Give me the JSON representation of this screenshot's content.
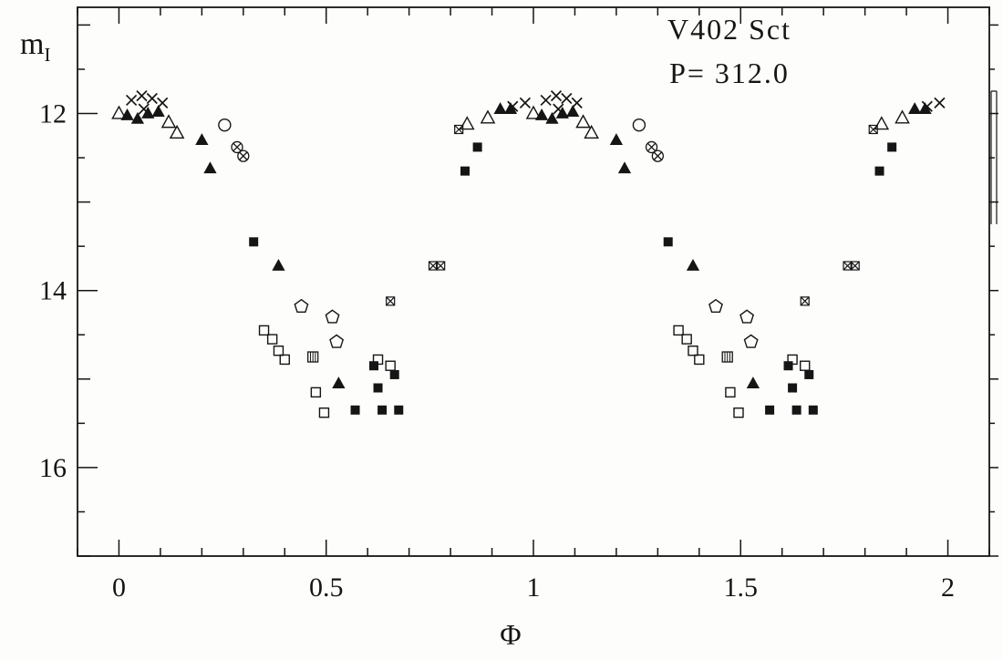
{
  "chart_data": {
    "type": "scatter",
    "title": "V402 Sct",
    "annotation": "P= 312.0",
    "xlabel": "Φ",
    "ylabel": "m_I",
    "ylabel_main": "m",
    "ylabel_sub": "I",
    "axes_inverted_y": true,
    "x_axis": {
      "min": -0.1,
      "max": 2.1,
      "major_ticks": [
        0,
        0.5,
        1,
        1.5,
        2
      ],
      "major_tick_labels": [
        "0",
        "0.5",
        "1",
        "1.5",
        "2"
      ],
      "minor_step": 0.1
    },
    "y_axis": {
      "top_mag": 10.8,
      "bottom_mag": 17.0,
      "labeled_ticks": [
        12,
        14,
        16
      ],
      "tick_labels": [
        "12",
        "14",
        "16"
      ],
      "integer_ticks": [
        11,
        12,
        13,
        14,
        15,
        16,
        17
      ],
      "minor_step": 0.5
    },
    "phase_plotted_twice": true,
    "series": [
      {
        "name": "cross",
        "glyph": "×",
        "points": [
          [
            0.03,
            11.85
          ],
          [
            0.055,
            11.8
          ],
          [
            0.08,
            11.83
          ],
          [
            0.105,
            11.88
          ],
          [
            0.06,
            11.95
          ],
          [
            0.95,
            11.92
          ],
          [
            0.98,
            11.88
          ]
        ]
      },
      {
        "name": "filled-triangle",
        "glyph": "▲",
        "points": [
          [
            0.02,
            12.02
          ],
          [
            0.045,
            12.06
          ],
          [
            0.07,
            12.0
          ],
          [
            0.095,
            11.98
          ],
          [
            0.2,
            12.3
          ],
          [
            0.22,
            12.62
          ],
          [
            0.385,
            13.72
          ],
          [
            0.53,
            15.05
          ],
          [
            0.92,
            11.95
          ],
          [
            0.945,
            11.95
          ]
        ]
      },
      {
        "name": "open-triangle",
        "glyph": "△",
        "points": [
          [
            0.0,
            12.0
          ],
          [
            0.12,
            12.1
          ],
          [
            0.14,
            12.22
          ],
          [
            0.84,
            12.12
          ],
          [
            0.89,
            12.05
          ]
        ]
      },
      {
        "name": "open-circle",
        "glyph": "○",
        "points": [
          [
            0.255,
            12.13
          ]
        ]
      },
      {
        "name": "crossed-circle",
        "glyph": "⊗",
        "points": [
          [
            0.285,
            12.38
          ],
          [
            0.3,
            12.48
          ]
        ]
      },
      {
        "name": "filled-square",
        "glyph": "■",
        "points": [
          [
            0.325,
            13.45
          ],
          [
            0.57,
            15.35
          ],
          [
            0.615,
            14.85
          ],
          [
            0.625,
            15.1
          ],
          [
            0.635,
            15.35
          ],
          [
            0.665,
            14.95
          ],
          [
            0.675,
            15.35
          ],
          [
            0.835,
            12.65
          ],
          [
            0.865,
            12.38
          ]
        ]
      },
      {
        "name": "open-square",
        "glyph": "□",
        "points": [
          [
            0.35,
            14.45
          ],
          [
            0.37,
            14.55
          ],
          [
            0.385,
            14.68
          ],
          [
            0.4,
            14.78
          ],
          [
            0.475,
            15.15
          ],
          [
            0.495,
            15.38
          ],
          [
            0.625,
            14.78
          ],
          [
            0.655,
            14.85
          ]
        ]
      },
      {
        "name": "open-pentagon",
        "glyph": "⬠",
        "points": [
          [
            0.44,
            14.18
          ],
          [
            0.515,
            14.3
          ],
          [
            0.525,
            14.58
          ]
        ]
      },
      {
        "name": "hatched-square",
        "glyph": "▥",
        "points": [
          [
            0.468,
            14.75
          ]
        ]
      },
      {
        "name": "crossed-square",
        "glyph": "⊠",
        "points": [
          [
            0.655,
            14.12
          ],
          [
            0.758,
            13.72
          ],
          [
            0.776,
            13.72
          ],
          [
            0.82,
            12.18
          ]
        ]
      }
    ]
  }
}
